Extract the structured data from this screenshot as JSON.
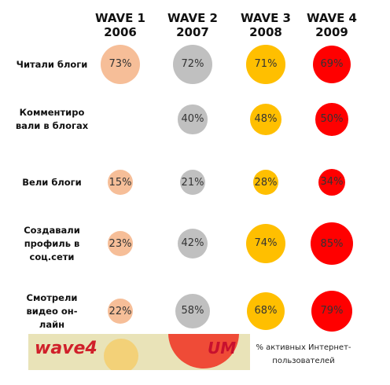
{
  "chart_data": {
    "type": "bubble-matrix",
    "waves": [
      {
        "name": "WAVE 1",
        "year": "2006",
        "color": "#f6be98"
      },
      {
        "name": "WAVE 2",
        "year": "2007",
        "color": "#c0c0c0"
      },
      {
        "name": "WAVE 3",
        "year": "2008",
        "color": "#ffbf00"
      },
      {
        "name": "WAVE 4",
        "year": "2009",
        "color": "#ff0000"
      }
    ],
    "rows": [
      {
        "label": [
          "Читали блоги"
        ],
        "values": [
          73,
          72,
          71,
          69
        ]
      },
      {
        "label": [
          "Комментиро",
          "вали в блогах"
        ],
        "values": [
          null,
          40,
          48,
          50
        ]
      },
      {
        "label": [
          "Вели блоги"
        ],
        "values": [
          15,
          21,
          28,
          34
        ]
      },
      {
        "label": [
          "Создавали",
          "профиль в",
          "соц.сети"
        ],
        "values": [
          23,
          42,
          74,
          85
        ]
      },
      {
        "label": [
          "Смотрели",
          "видео он-",
          "лайн"
        ],
        "values": [
          22,
          58,
          68,
          79
        ]
      }
    ],
    "value_suffix": "%"
  },
  "footnote": [
    "% активных Интернет-",
    "пользователей"
  ],
  "banner": {
    "logo": "wave4",
    "brand": "UM"
  }
}
